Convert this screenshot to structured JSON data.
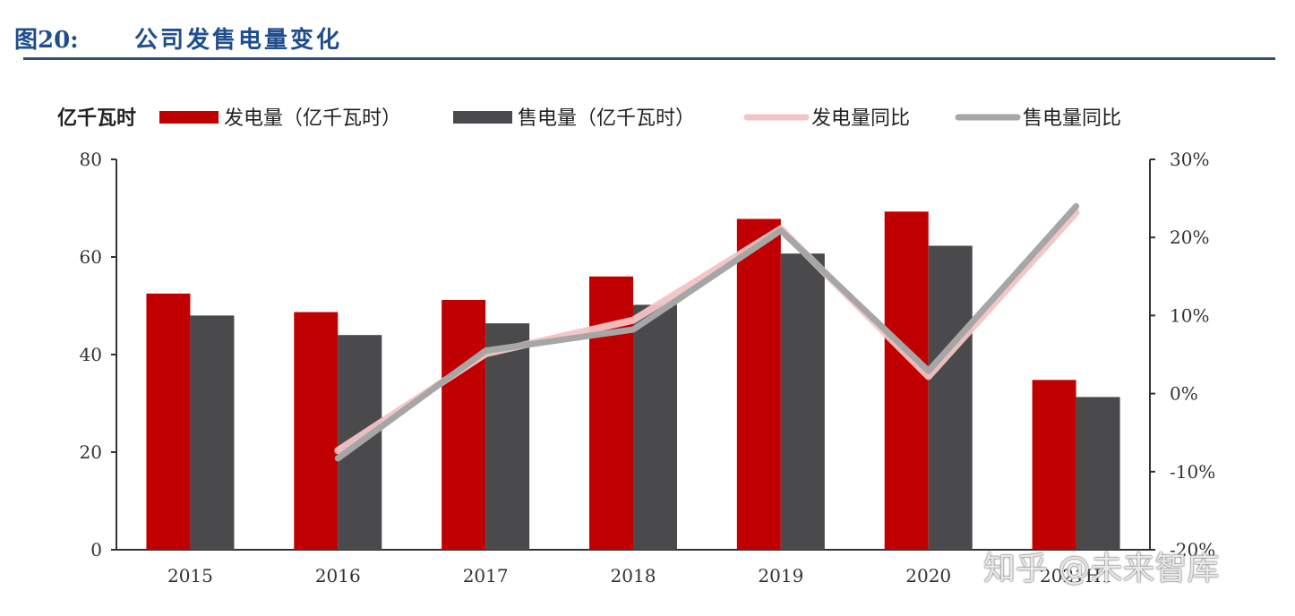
{
  "header": {
    "figure_number": "图20:",
    "title": "公司发售电量变化"
  },
  "watermark": "知乎 @未来智库",
  "chart_data": {
    "type": "bar",
    "unit_label": "亿千瓦时",
    "categories": [
      "2015",
      "2016",
      "2017",
      "2018",
      "2019",
      "2020",
      "2021H1"
    ],
    "series": [
      {
        "name": "发电量（亿千瓦时）",
        "kind": "bar",
        "axis": "left",
        "color": "#c00000",
        "values": [
          52.5,
          48.7,
          51.2,
          56.0,
          67.8,
          69.3,
          34.8
        ]
      },
      {
        "name": "售电量（亿千瓦时）",
        "kind": "bar",
        "axis": "left",
        "color": "#4a4a4d",
        "values": [
          48.0,
          44.0,
          46.4,
          50.2,
          60.7,
          62.3,
          31.3
        ]
      }
    ],
    "line_series": [
      {
        "name": "发电量同比",
        "kind": "line",
        "axis": "right",
        "color": "#f2c4c4",
        "x": [
          "2016",
          "2017",
          "2018",
          "2019",
          "2020",
          "2021H1"
        ],
        "values": [
          -7.3,
          5.1,
          9.4,
          21.1,
          2.2,
          23.2
        ]
      },
      {
        "name": "售电量同比",
        "kind": "line",
        "axis": "right",
        "color": "#a6a6a6",
        "x": [
          "2016",
          "2017",
          "2018",
          "2019",
          "2020",
          "2021H1"
        ],
        "values": [
          -8.3,
          5.5,
          8.2,
          20.9,
          2.9,
          24.0
        ]
      }
    ],
    "left_axis": {
      "min": 0,
      "max": 80,
      "ticks": [
        "0",
        "20",
        "40",
        "60",
        "80"
      ]
    },
    "right_axis": {
      "min": -20,
      "max": 30,
      "ticks": [
        "-20%",
        "-10%",
        "0%",
        "10%",
        "20%",
        "30%"
      ]
    },
    "legend_position": "top",
    "grid": false
  }
}
